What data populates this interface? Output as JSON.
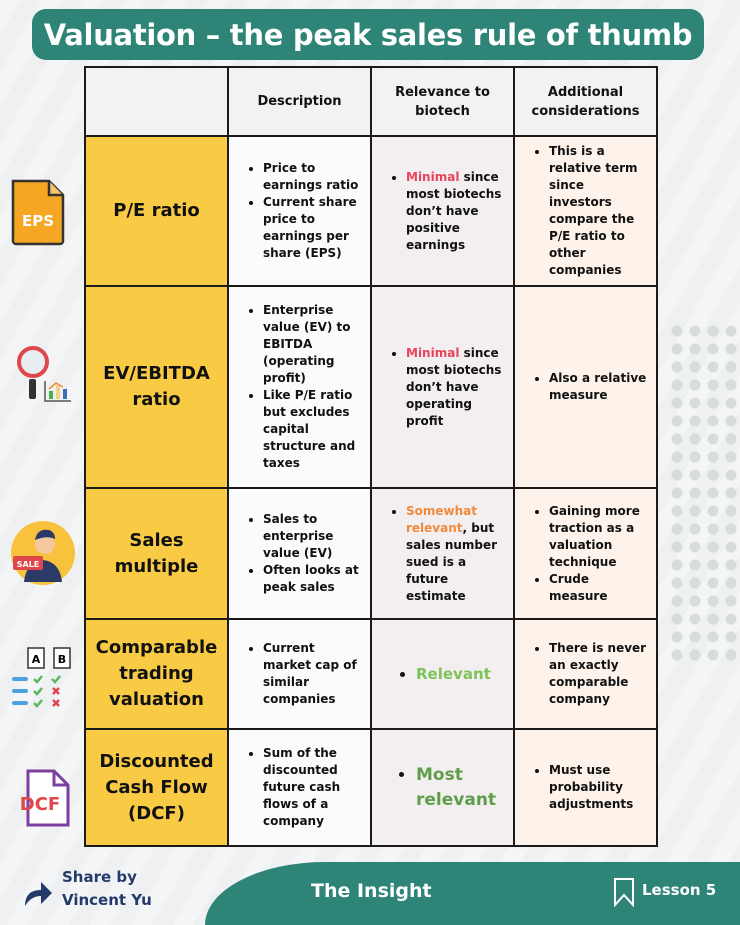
{
  "title": "Valuation – the peak sales rule of thumb",
  "headers": [
    "",
    "Description",
    "Relevance to biotech",
    "Additional considerations"
  ],
  "colors": {
    "accent": "#2e8577",
    "name_cell": "#f9cb45",
    "minimal": "#e8445a",
    "somewhat": "#f08a3c",
    "relevant": "#7cc35a",
    "most": "#5e9e4a"
  },
  "rows": [
    {
      "icon": "eps-file-icon",
      "name": "P/E ratio",
      "desc": [
        "Price to earnings ratio",
        "Current share price to earnings per share (EPS)"
      ],
      "rel": {
        "hl": "Minimal",
        "rest": " since most biotechs don’t have positive earnings",
        "color": "#e8445a"
      },
      "add": [
        "This is a relative term since investors compare the P/E ratio to other companies"
      ],
      "icon_text": "EPS"
    },
    {
      "icon": "magnifier-chart-icon",
      "name": "EV/EBITDA ratio",
      "desc": [
        "Enterprise value (EV) to EBITDA (operating profit)",
        "Like P/E ratio but excludes capital structure and taxes"
      ],
      "rel": {
        "hl": "Minimal",
        "rest": " since most biotechs don’t have operating profit",
        "color": "#e8445a"
      },
      "add": [
        "Also a relative measure"
      ]
    },
    {
      "icon": "salesman-icon",
      "name": "Sales multiple",
      "desc": [
        "Sales to enterprise value (EV)",
        "Often looks at peak sales"
      ],
      "rel": {
        "hl": "Somewhat relevant",
        "rest": ", but sales number sued is a future estimate",
        "color": "#f08a3c"
      },
      "add": [
        "Gaining more traction as a valuation technique",
        "Crude measure"
      ],
      "icon_text": "SALE"
    },
    {
      "icon": "compare-checklist-icon",
      "name": "Comparable trading valuation",
      "desc": [
        "Current market cap of similar companies"
      ],
      "rel": {
        "hl": "Relevant",
        "rest": "",
        "color": "#7cc35a"
      },
      "add": [
        "There is never an exactly comparable company"
      ],
      "icon_text": [
        "A",
        "B"
      ]
    },
    {
      "icon": "dcf-file-icon",
      "name": "Discounted Cash Flow (DCF)",
      "desc": [
        "Sum of the discounted future cash flows of a company"
      ],
      "rel": {
        "hl": "Most relevant",
        "rest": "",
        "color": "#5e9e4a"
      },
      "add": [
        "Must use probability adjustments"
      ],
      "icon_text": "DCF"
    }
  ],
  "footer": {
    "share_line1": "Share by",
    "share_line2": "Vincent Yu",
    "brand": "The Insight",
    "lesson": "Lesson 5"
  }
}
